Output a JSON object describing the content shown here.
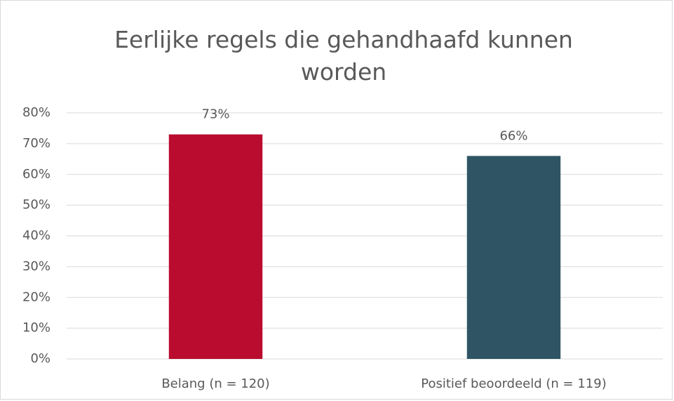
{
  "chart_data": {
    "type": "bar",
    "title": "Eerlijke regels die gehandhaafd kunnen worden",
    "categories": [
      "Belang (n = 120)",
      "Positief beoordeeld (n = 119)"
    ],
    "values": [
      73,
      66
    ],
    "value_labels": [
      "73%",
      "66%"
    ],
    "colors": [
      "#ba0c2f",
      "#2f5564"
    ],
    "ylim": [
      0,
      80
    ],
    "yticks": [
      {
        "value": 0,
        "label": "0%"
      },
      {
        "value": 10,
        "label": "10%"
      },
      {
        "value": 20,
        "label": "20%"
      },
      {
        "value": 30,
        "label": "30%"
      },
      {
        "value": 40,
        "label": "40%"
      },
      {
        "value": 50,
        "label": "50%"
      },
      {
        "value": 60,
        "label": "60%"
      },
      {
        "value": 70,
        "label": "70%"
      },
      {
        "value": 80,
        "label": "80%"
      }
    ],
    "grid": true
  }
}
